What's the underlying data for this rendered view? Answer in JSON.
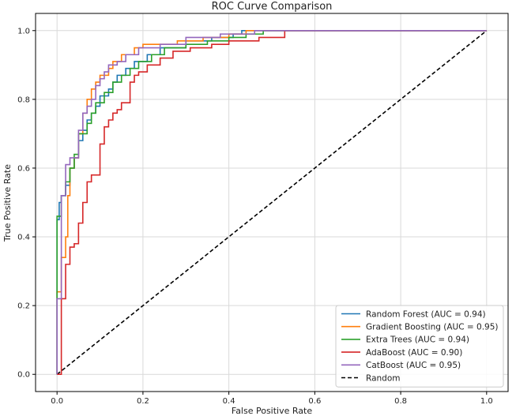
{
  "chart_data": {
    "type": "line",
    "title": "ROC Curve Comparison",
    "xlabel": "False Positive Rate",
    "ylabel": "True Positive Rate",
    "xlim": [
      -0.05,
      1.05
    ],
    "ylim": [
      -0.05,
      1.05
    ],
    "xticks": [
      "0.0",
      "0.2",
      "0.4",
      "0.6",
      "0.8",
      "1.0"
    ],
    "yticks": [
      "0.0",
      "0.2",
      "0.4",
      "0.6",
      "0.8",
      "1.0"
    ],
    "grid": true,
    "legend_position": "bottom-right",
    "series": [
      {
        "name": "Random Forest (AUC = 0.94)",
        "color": "#1f77b4",
        "dashed": false,
        "points": [
          [
            0,
            0
          ],
          [
            0,
            0.45
          ],
          [
            0.005,
            0.45
          ],
          [
            0.005,
            0.5
          ],
          [
            0.01,
            0.5
          ],
          [
            0.01,
            0.52
          ],
          [
            0.02,
            0.52
          ],
          [
            0.02,
            0.55
          ],
          [
            0.03,
            0.55
          ],
          [
            0.03,
            0.6
          ],
          [
            0.04,
            0.6
          ],
          [
            0.04,
            0.63
          ],
          [
            0.05,
            0.63
          ],
          [
            0.05,
            0.68
          ],
          [
            0.06,
            0.68
          ],
          [
            0.06,
            0.71
          ],
          [
            0.07,
            0.71
          ],
          [
            0.07,
            0.74
          ],
          [
            0.08,
            0.74
          ],
          [
            0.08,
            0.76
          ],
          [
            0.09,
            0.76
          ],
          [
            0.09,
            0.78
          ],
          [
            0.1,
            0.78
          ],
          [
            0.1,
            0.81
          ],
          [
            0.12,
            0.81
          ],
          [
            0.12,
            0.83
          ],
          [
            0.13,
            0.83
          ],
          [
            0.13,
            0.85
          ],
          [
            0.14,
            0.85
          ],
          [
            0.14,
            0.87
          ],
          [
            0.16,
            0.87
          ],
          [
            0.16,
            0.89
          ],
          [
            0.18,
            0.89
          ],
          [
            0.18,
            0.91
          ],
          [
            0.21,
            0.91
          ],
          [
            0.21,
            0.93
          ],
          [
            0.24,
            0.93
          ],
          [
            0.24,
            0.95
          ],
          [
            0.3,
            0.95
          ],
          [
            0.3,
            0.97
          ],
          [
            0.36,
            0.97
          ],
          [
            0.36,
            0.98
          ],
          [
            0.41,
            0.98
          ],
          [
            0.41,
            0.99
          ],
          [
            0.43,
            0.99
          ],
          [
            0.43,
            1.0
          ],
          [
            1.0,
            1.0
          ]
        ]
      },
      {
        "name": "Gradient Boosting (AUC = 0.95)",
        "color": "#ff7f0e",
        "dashed": false,
        "points": [
          [
            0,
            0
          ],
          [
            0,
            0.24
          ],
          [
            0.01,
            0.24
          ],
          [
            0.01,
            0.34
          ],
          [
            0.02,
            0.34
          ],
          [
            0.02,
            0.4
          ],
          [
            0.025,
            0.4
          ],
          [
            0.025,
            0.52
          ],
          [
            0.03,
            0.52
          ],
          [
            0.03,
            0.6
          ],
          [
            0.04,
            0.6
          ],
          [
            0.04,
            0.63
          ],
          [
            0.05,
            0.63
          ],
          [
            0.05,
            0.7
          ],
          [
            0.06,
            0.7
          ],
          [
            0.06,
            0.76
          ],
          [
            0.07,
            0.76
          ],
          [
            0.07,
            0.8
          ],
          [
            0.08,
            0.8
          ],
          [
            0.08,
            0.83
          ],
          [
            0.09,
            0.83
          ],
          [
            0.09,
            0.85
          ],
          [
            0.1,
            0.85
          ],
          [
            0.1,
            0.87
          ],
          [
            0.12,
            0.87
          ],
          [
            0.12,
            0.89
          ],
          [
            0.13,
            0.89
          ],
          [
            0.13,
            0.91
          ],
          [
            0.15,
            0.91
          ],
          [
            0.15,
            0.93
          ],
          [
            0.18,
            0.93
          ],
          [
            0.18,
            0.95
          ],
          [
            0.2,
            0.95
          ],
          [
            0.2,
            0.96
          ],
          [
            0.28,
            0.96
          ],
          [
            0.28,
            0.97
          ],
          [
            0.34,
            0.97
          ],
          [
            0.34,
            0.98
          ],
          [
            0.4,
            0.98
          ],
          [
            0.4,
            0.99
          ],
          [
            0.44,
            0.99
          ],
          [
            0.44,
            1.0
          ],
          [
            1.0,
            1.0
          ]
        ]
      },
      {
        "name": "Extra Trees (AUC = 0.94)",
        "color": "#2ca02c",
        "dashed": false,
        "points": [
          [
            0,
            0
          ],
          [
            0,
            0.46
          ],
          [
            0.01,
            0.46
          ],
          [
            0.01,
            0.52
          ],
          [
            0.02,
            0.52
          ],
          [
            0.02,
            0.56
          ],
          [
            0.03,
            0.56
          ],
          [
            0.03,
            0.6
          ],
          [
            0.04,
            0.6
          ],
          [
            0.04,
            0.64
          ],
          [
            0.05,
            0.64
          ],
          [
            0.05,
            0.7
          ],
          [
            0.07,
            0.7
          ],
          [
            0.07,
            0.73
          ],
          [
            0.08,
            0.73
          ],
          [
            0.08,
            0.76
          ],
          [
            0.09,
            0.76
          ],
          [
            0.09,
            0.79
          ],
          [
            0.11,
            0.79
          ],
          [
            0.11,
            0.82
          ],
          [
            0.13,
            0.82
          ],
          [
            0.13,
            0.85
          ],
          [
            0.15,
            0.85
          ],
          [
            0.15,
            0.87
          ],
          [
            0.17,
            0.87
          ],
          [
            0.17,
            0.89
          ],
          [
            0.19,
            0.89
          ],
          [
            0.19,
            0.91
          ],
          [
            0.22,
            0.91
          ],
          [
            0.22,
            0.93
          ],
          [
            0.25,
            0.93
          ],
          [
            0.25,
            0.95
          ],
          [
            0.3,
            0.95
          ],
          [
            0.3,
            0.96
          ],
          [
            0.35,
            0.96
          ],
          [
            0.35,
            0.97
          ],
          [
            0.4,
            0.97
          ],
          [
            0.4,
            0.98
          ],
          [
            0.44,
            0.98
          ],
          [
            0.44,
            0.99
          ],
          [
            0.48,
            0.99
          ],
          [
            0.48,
            1.0
          ],
          [
            1.0,
            1.0
          ]
        ]
      },
      {
        "name": "AdaBoost (AUC = 0.90)",
        "color": "#d62728",
        "dashed": false,
        "points": [
          [
            0,
            0
          ],
          [
            0.01,
            0
          ],
          [
            0.01,
            0.22
          ],
          [
            0.02,
            0.22
          ],
          [
            0.02,
            0.32
          ],
          [
            0.03,
            0.32
          ],
          [
            0.03,
            0.37
          ],
          [
            0.04,
            0.37
          ],
          [
            0.04,
            0.38
          ],
          [
            0.05,
            0.38
          ],
          [
            0.05,
            0.44
          ],
          [
            0.06,
            0.44
          ],
          [
            0.06,
            0.5
          ],
          [
            0.07,
            0.5
          ],
          [
            0.07,
            0.56
          ],
          [
            0.08,
            0.56
          ],
          [
            0.08,
            0.58
          ],
          [
            0.1,
            0.58
          ],
          [
            0.1,
            0.67
          ],
          [
            0.11,
            0.67
          ],
          [
            0.11,
            0.72
          ],
          [
            0.12,
            0.72
          ],
          [
            0.12,
            0.74
          ],
          [
            0.13,
            0.74
          ],
          [
            0.13,
            0.76
          ],
          [
            0.14,
            0.76
          ],
          [
            0.14,
            0.77
          ],
          [
            0.15,
            0.77
          ],
          [
            0.15,
            0.79
          ],
          [
            0.17,
            0.79
          ],
          [
            0.17,
            0.85
          ],
          [
            0.18,
            0.85
          ],
          [
            0.18,
            0.87
          ],
          [
            0.19,
            0.87
          ],
          [
            0.19,
            0.88
          ],
          [
            0.21,
            0.88
          ],
          [
            0.21,
            0.9
          ],
          [
            0.24,
            0.9
          ],
          [
            0.24,
            0.92
          ],
          [
            0.27,
            0.92
          ],
          [
            0.27,
            0.94
          ],
          [
            0.31,
            0.94
          ],
          [
            0.31,
            0.95
          ],
          [
            0.36,
            0.95
          ],
          [
            0.36,
            0.96
          ],
          [
            0.4,
            0.96
          ],
          [
            0.4,
            0.97
          ],
          [
            0.47,
            0.97
          ],
          [
            0.47,
            0.98
          ],
          [
            0.53,
            0.98
          ],
          [
            0.53,
            0.99
          ],
          [
            0.53,
            1.0
          ],
          [
            1.0,
            1.0
          ]
        ]
      },
      {
        "name": "CatBoost (AUC = 0.95)",
        "color": "#9467bd",
        "dashed": false,
        "points": [
          [
            0,
            0
          ],
          [
            0,
            0.22
          ],
          [
            0.01,
            0.22
          ],
          [
            0.01,
            0.52
          ],
          [
            0.02,
            0.52
          ],
          [
            0.02,
            0.58
          ],
          [
            0.02,
            0.61
          ],
          [
            0.03,
            0.61
          ],
          [
            0.03,
            0.63
          ],
          [
            0.05,
            0.63
          ],
          [
            0.05,
            0.71
          ],
          [
            0.06,
            0.71
          ],
          [
            0.06,
            0.76
          ],
          [
            0.07,
            0.76
          ],
          [
            0.07,
            0.78
          ],
          [
            0.08,
            0.78
          ],
          [
            0.08,
            0.8
          ],
          [
            0.09,
            0.8
          ],
          [
            0.09,
            0.84
          ],
          [
            0.1,
            0.84
          ],
          [
            0.1,
            0.86
          ],
          [
            0.11,
            0.86
          ],
          [
            0.11,
            0.88
          ],
          [
            0.12,
            0.88
          ],
          [
            0.12,
            0.9
          ],
          [
            0.14,
            0.9
          ],
          [
            0.14,
            0.91
          ],
          [
            0.16,
            0.91
          ],
          [
            0.16,
            0.93
          ],
          [
            0.19,
            0.93
          ],
          [
            0.19,
            0.95
          ],
          [
            0.24,
            0.95
          ],
          [
            0.24,
            0.96
          ],
          [
            0.3,
            0.96
          ],
          [
            0.3,
            0.98
          ],
          [
            0.38,
            0.98
          ],
          [
            0.38,
            0.99
          ],
          [
            0.46,
            0.99
          ],
          [
            0.46,
            1.0
          ],
          [
            1.0,
            1.0
          ]
        ]
      },
      {
        "name": "Random",
        "color": "#000000",
        "dashed": true,
        "points": [
          [
            0,
            0
          ],
          [
            1,
            1
          ]
        ]
      }
    ]
  }
}
